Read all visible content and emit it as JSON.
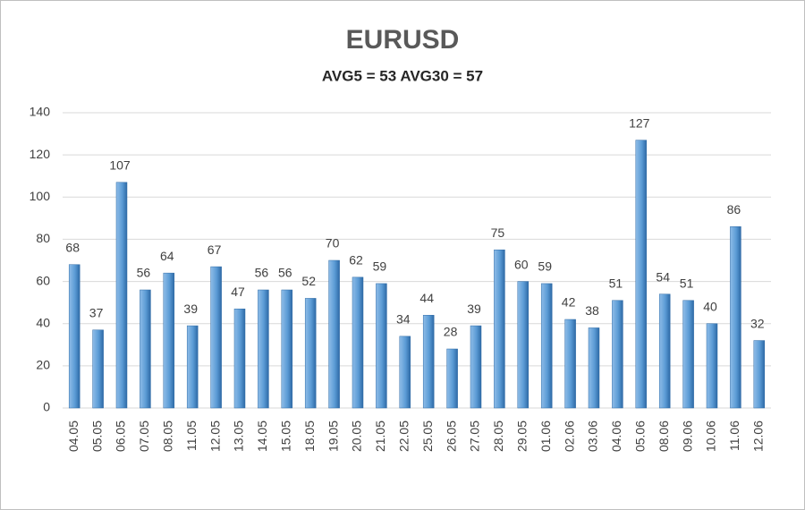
{
  "chart_data": {
    "type": "bar",
    "title": "EURUSD",
    "subtitle": "AVG5 = 53 AVG30 = 57",
    "categories": [
      "04.05",
      "05.05",
      "06.05",
      "07.05",
      "08.05",
      "11.05",
      "12.05",
      "13.05",
      "14.05",
      "15.05",
      "18.05",
      "19.05",
      "20.05",
      "21.05",
      "22.05",
      "25.05",
      "26.05",
      "27.05",
      "28.05",
      "29.05",
      "01.06",
      "02.06",
      "03.06",
      "04.06",
      "05.06",
      "08.06",
      "09.06",
      "10.06",
      "11.06",
      "12.06"
    ],
    "values": [
      68,
      37,
      107,
      56,
      64,
      39,
      67,
      47,
      56,
      56,
      52,
      70,
      62,
      59,
      34,
      44,
      28,
      39,
      75,
      60,
      59,
      42,
      38,
      51,
      127,
      54,
      51,
      40,
      86,
      32
    ],
    "color": "#5b9bd5",
    "ylim": [
      0,
      140
    ],
    "yticks": [
      0,
      20,
      40,
      60,
      80,
      100,
      120,
      140
    ],
    "grid": true
  }
}
